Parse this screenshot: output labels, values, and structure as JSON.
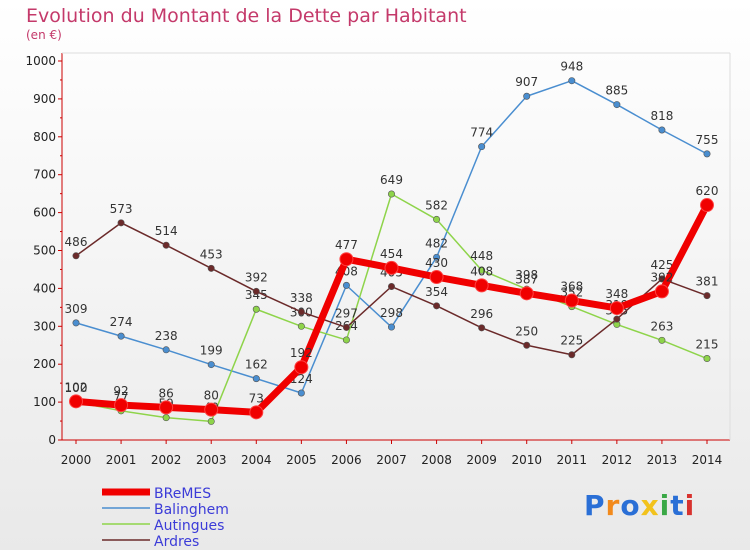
{
  "title": "Evolution du Montant de la Dette par Habitant",
  "subtitle": "(en €)",
  "logo": {
    "text": "Proxiti",
    "colors": [
      "#2a6fd6",
      "#f28a1c",
      "#2a6fd6",
      "#f2c21c",
      "#3aa846",
      "#2a6fd6",
      "#d8322e"
    ]
  },
  "chart_data": {
    "type": "line",
    "x": [
      2000,
      2001,
      2002,
      2003,
      2004,
      2005,
      2006,
      2007,
      2008,
      2009,
      2010,
      2011,
      2012,
      2013,
      2014
    ],
    "ylim": [
      0,
      1000
    ],
    "yticks": [
      0,
      100,
      200,
      300,
      400,
      500,
      600,
      700,
      800,
      900,
      1000
    ],
    "grid": false,
    "legend_position": "bottom-left",
    "series": [
      {
        "name": "BReMES",
        "color": "#f00000",
        "values": [
          102,
          92,
          86,
          80,
          73,
          192,
          477,
          454,
          430,
          408,
          387,
          368,
          348,
          392,
          620
        ]
      },
      {
        "name": "Balinghem",
        "color": "#4a8ed0",
        "values": [
          309,
          274,
          238,
          199,
          162,
          124,
          408,
          298,
          482,
          774,
          907,
          948,
          885,
          818,
          755
        ]
      },
      {
        "name": "Autingues",
        "color": "#8ed44a",
        "values": [
          100,
          77,
          59,
          49,
          345,
          300,
          264,
          649,
          582,
          448,
          398,
          352,
          305,
          263,
          215
        ]
      },
      {
        "name": "Ardres",
        "color": "#6b2a2a",
        "values": [
          486,
          573,
          514,
          453,
          392,
          338,
          297,
          405,
          354,
          296,
          250,
          225,
          319,
          425,
          381
        ]
      }
    ]
  }
}
